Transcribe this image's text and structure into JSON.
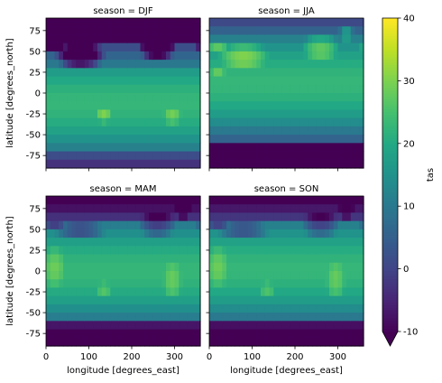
{
  "chart_data": {
    "type": "heatmap",
    "variable": "tas",
    "colorbar": {
      "label": "tas",
      "min": -10,
      "max": 40,
      "ticks": [
        -10,
        0,
        10,
        20,
        30,
        40
      ],
      "extend": "min",
      "colormap": "viridis"
    },
    "xlabel": "longitude [degrees_east]",
    "ylabel": "latitude [degrees_north]",
    "xlim": [
      0,
      360
    ],
    "ylim": [
      -90,
      90
    ],
    "xticks": [
      0,
      100,
      200,
      300
    ],
    "yticks": [
      75,
      50,
      25,
      0,
      -25,
      -50,
      -75
    ],
    "panels": [
      {
        "title": "season = DJF",
        "season": "DJF",
        "show_ylabel": true,
        "show_xlabel": false
      },
      {
        "title": "season = JJA",
        "season": "JJA",
        "show_ylabel": false,
        "show_xlabel": false
      },
      {
        "title": "season = MAM",
        "season": "MAM",
        "show_ylabel": true,
        "show_xlabel": true
      },
      {
        "title": "season = SON",
        "season": "SON",
        "show_ylabel": false,
        "show_xlabel": true
      }
    ]
  }
}
